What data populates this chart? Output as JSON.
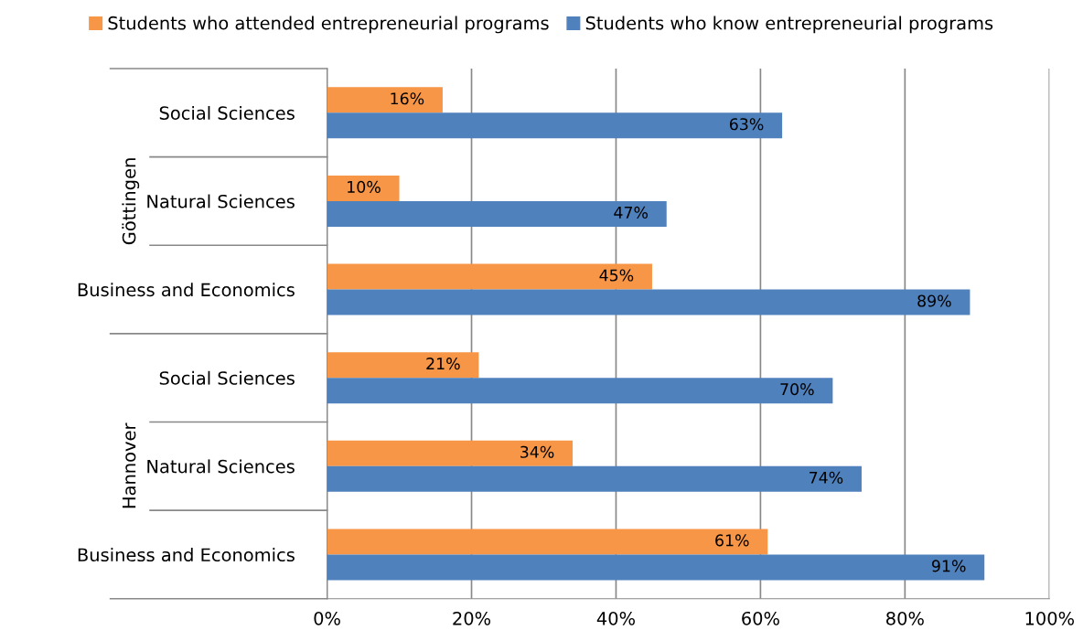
{
  "chart_data": {
    "type": "bar",
    "orientation": "horizontal",
    "categories": [
      "Social Sciences",
      "Natural Sciences",
      "Business and Economics",
      "Social Sciences",
      "Natural Sciences",
      "Business and Economics"
    ],
    "annotations": [
      "Göttingen",
      "Hannover"
    ],
    "series": [
      {
        "name": "Students who attended entrepreneurial programs",
        "color": "#f79646",
        "values": [
          16,
          10,
          45,
          21,
          34,
          61
        ],
        "value_labels": [
          "16%",
          "10%",
          "45%",
          "21%",
          "34%",
          "61%"
        ]
      },
      {
        "name": "Students who know entrepreneurial programs",
        "color": "#4f81bd",
        "values": [
          63,
          47,
          89,
          70,
          74,
          91
        ],
        "value_labels": [
          "63%",
          "47%",
          "89%",
          "70%",
          "74%",
          "91%"
        ]
      }
    ],
    "xlim": [
      0,
      100
    ],
    "xticks": [
      {
        "value": 0,
        "label": "0%"
      },
      {
        "value": 20,
        "label": "20%"
      },
      {
        "value": 40,
        "label": "40%"
      },
      {
        "value": 60,
        "label": "60%"
      },
      {
        "value": 80,
        "label": "80%"
      },
      {
        "value": 100,
        "label": "100%"
      }
    ],
    "grid": "x",
    "legend": "top"
  }
}
